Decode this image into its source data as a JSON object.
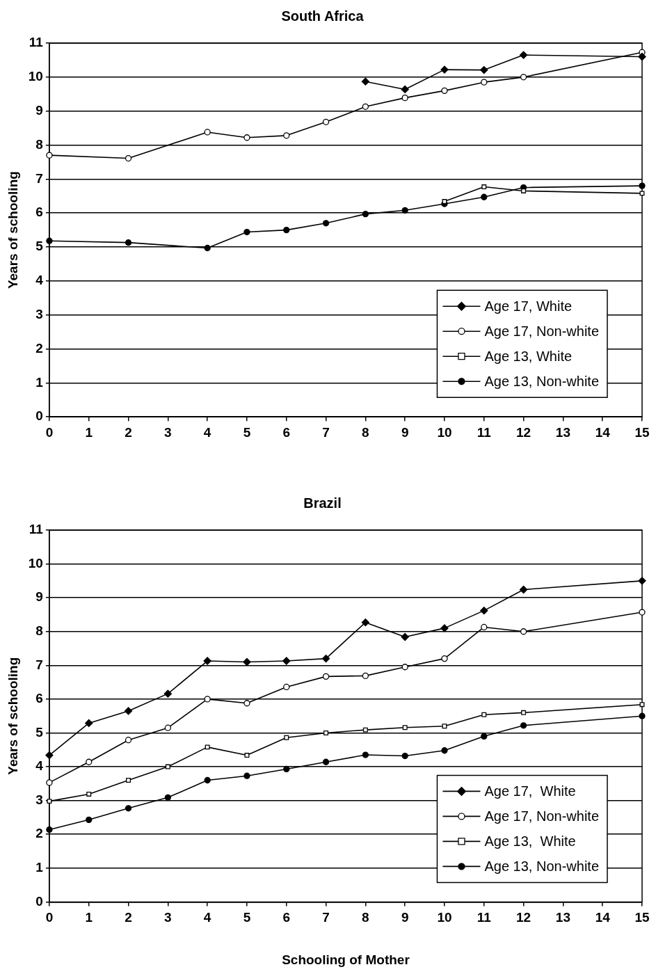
{
  "chart_data": [
    {
      "type": "line",
      "title": "South Africa",
      "ylabel": "Years of schooling",
      "xlim": [
        0,
        15
      ],
      "xticks": [
        0,
        1,
        2,
        3,
        4,
        5,
        6,
        7,
        8,
        9,
        10,
        11,
        12,
        13,
        14,
        15
      ],
      "ylim": [
        0,
        11
      ],
      "yticks": [
        0,
        1,
        2,
        3,
        4,
        5,
        6,
        7,
        8,
        9,
        10,
        11
      ],
      "grid": "y",
      "legend": "bottom right",
      "line_style": "solid",
      "series": [
        {
          "name": "Age 17, White",
          "color": "#000000",
          "marker": "diamond",
          "x": [
            8,
            9,
            10,
            11,
            12,
            15
          ],
          "values": [
            9.87,
            9.64,
            10.22,
            10.21,
            10.65,
            10.6
          ]
        },
        {
          "name": "Age 17, Non-white",
          "color": "#000000",
          "marker": "circle-open",
          "x": [
            0,
            2,
            4,
            5,
            6,
            7,
            8,
            9,
            10,
            11,
            12,
            15
          ],
          "values": [
            7.7,
            7.61,
            8.38,
            8.22,
            8.28,
            8.68,
            9.13,
            9.39,
            9.6,
            9.85,
            10.0,
            10.73
          ]
        },
        {
          "name": "Age 13, White",
          "color": "#000000",
          "marker": "square-open",
          "x": [
            10,
            11,
            12,
            15
          ],
          "values": [
            6.34,
            6.77,
            6.65,
            6.58
          ]
        },
        {
          "name": "Age 13, Non-white",
          "color": "#000000",
          "marker": "circle",
          "x": [
            0,
            2,
            4,
            5,
            6,
            7,
            8,
            9,
            10,
            11,
            12,
            15
          ],
          "values": [
            5.18,
            5.13,
            4.97,
            5.44,
            5.5,
            5.7,
            5.97,
            6.08,
            6.27,
            6.47,
            6.75,
            6.8
          ]
        }
      ]
    },
    {
      "type": "line",
      "title": "Brazil",
      "xlabel": "Schooling of Mother",
      "ylabel": "Years of schooling",
      "xlim": [
        0,
        15
      ],
      "xticks": [
        0,
        1,
        2,
        3,
        4,
        5,
        6,
        7,
        8,
        9,
        10,
        11,
        12,
        13,
        14,
        15
      ],
      "ylim": [
        0,
        11
      ],
      "yticks": [
        0,
        1,
        2,
        3,
        4,
        5,
        6,
        7,
        8,
        9,
        10,
        11
      ],
      "grid": "y",
      "legend": "bottom right",
      "line_style": "solid",
      "series": [
        {
          "name": "Age 17,  White",
          "color": "#000000",
          "marker": "diamond",
          "x": [
            0,
            1,
            2,
            3,
            4,
            5,
            6,
            7,
            8,
            9,
            10,
            11,
            12,
            15
          ],
          "values": [
            4.34,
            5.29,
            5.65,
            6.16,
            7.13,
            7.1,
            7.13,
            7.2,
            8.27,
            7.84,
            8.1,
            8.62,
            9.24,
            9.5
          ]
        },
        {
          "name": "Age 17, Non-white",
          "color": "#000000",
          "marker": "circle-open",
          "x": [
            0,
            1,
            2,
            3,
            4,
            5,
            6,
            7,
            8,
            9,
            10,
            11,
            12,
            15
          ],
          "values": [
            3.53,
            4.14,
            4.79,
            5.15,
            6.0,
            5.88,
            6.36,
            6.67,
            6.69,
            6.95,
            7.2,
            8.13,
            8.0,
            8.57
          ]
        },
        {
          "name": "Age 13,  White",
          "color": "#000000",
          "marker": "square-open",
          "x": [
            0,
            1,
            2,
            3,
            4,
            5,
            6,
            7,
            8,
            9,
            10,
            11,
            12,
            15
          ],
          "values": [
            2.98,
            3.19,
            3.6,
            4.0,
            4.58,
            4.34,
            4.86,
            5.0,
            5.09,
            5.16,
            5.2,
            5.54,
            5.6,
            5.84
          ]
        },
        {
          "name": "Age 13, Non-white",
          "color": "#000000",
          "marker": "circle",
          "x": [
            0,
            1,
            2,
            3,
            4,
            5,
            6,
            7,
            8,
            9,
            10,
            11,
            12,
            15
          ],
          "values": [
            2.14,
            2.43,
            2.77,
            3.09,
            3.6,
            3.73,
            3.93,
            4.14,
            4.35,
            4.32,
            4.48,
            4.9,
            5.22,
            5.5
          ]
        }
      ]
    }
  ]
}
